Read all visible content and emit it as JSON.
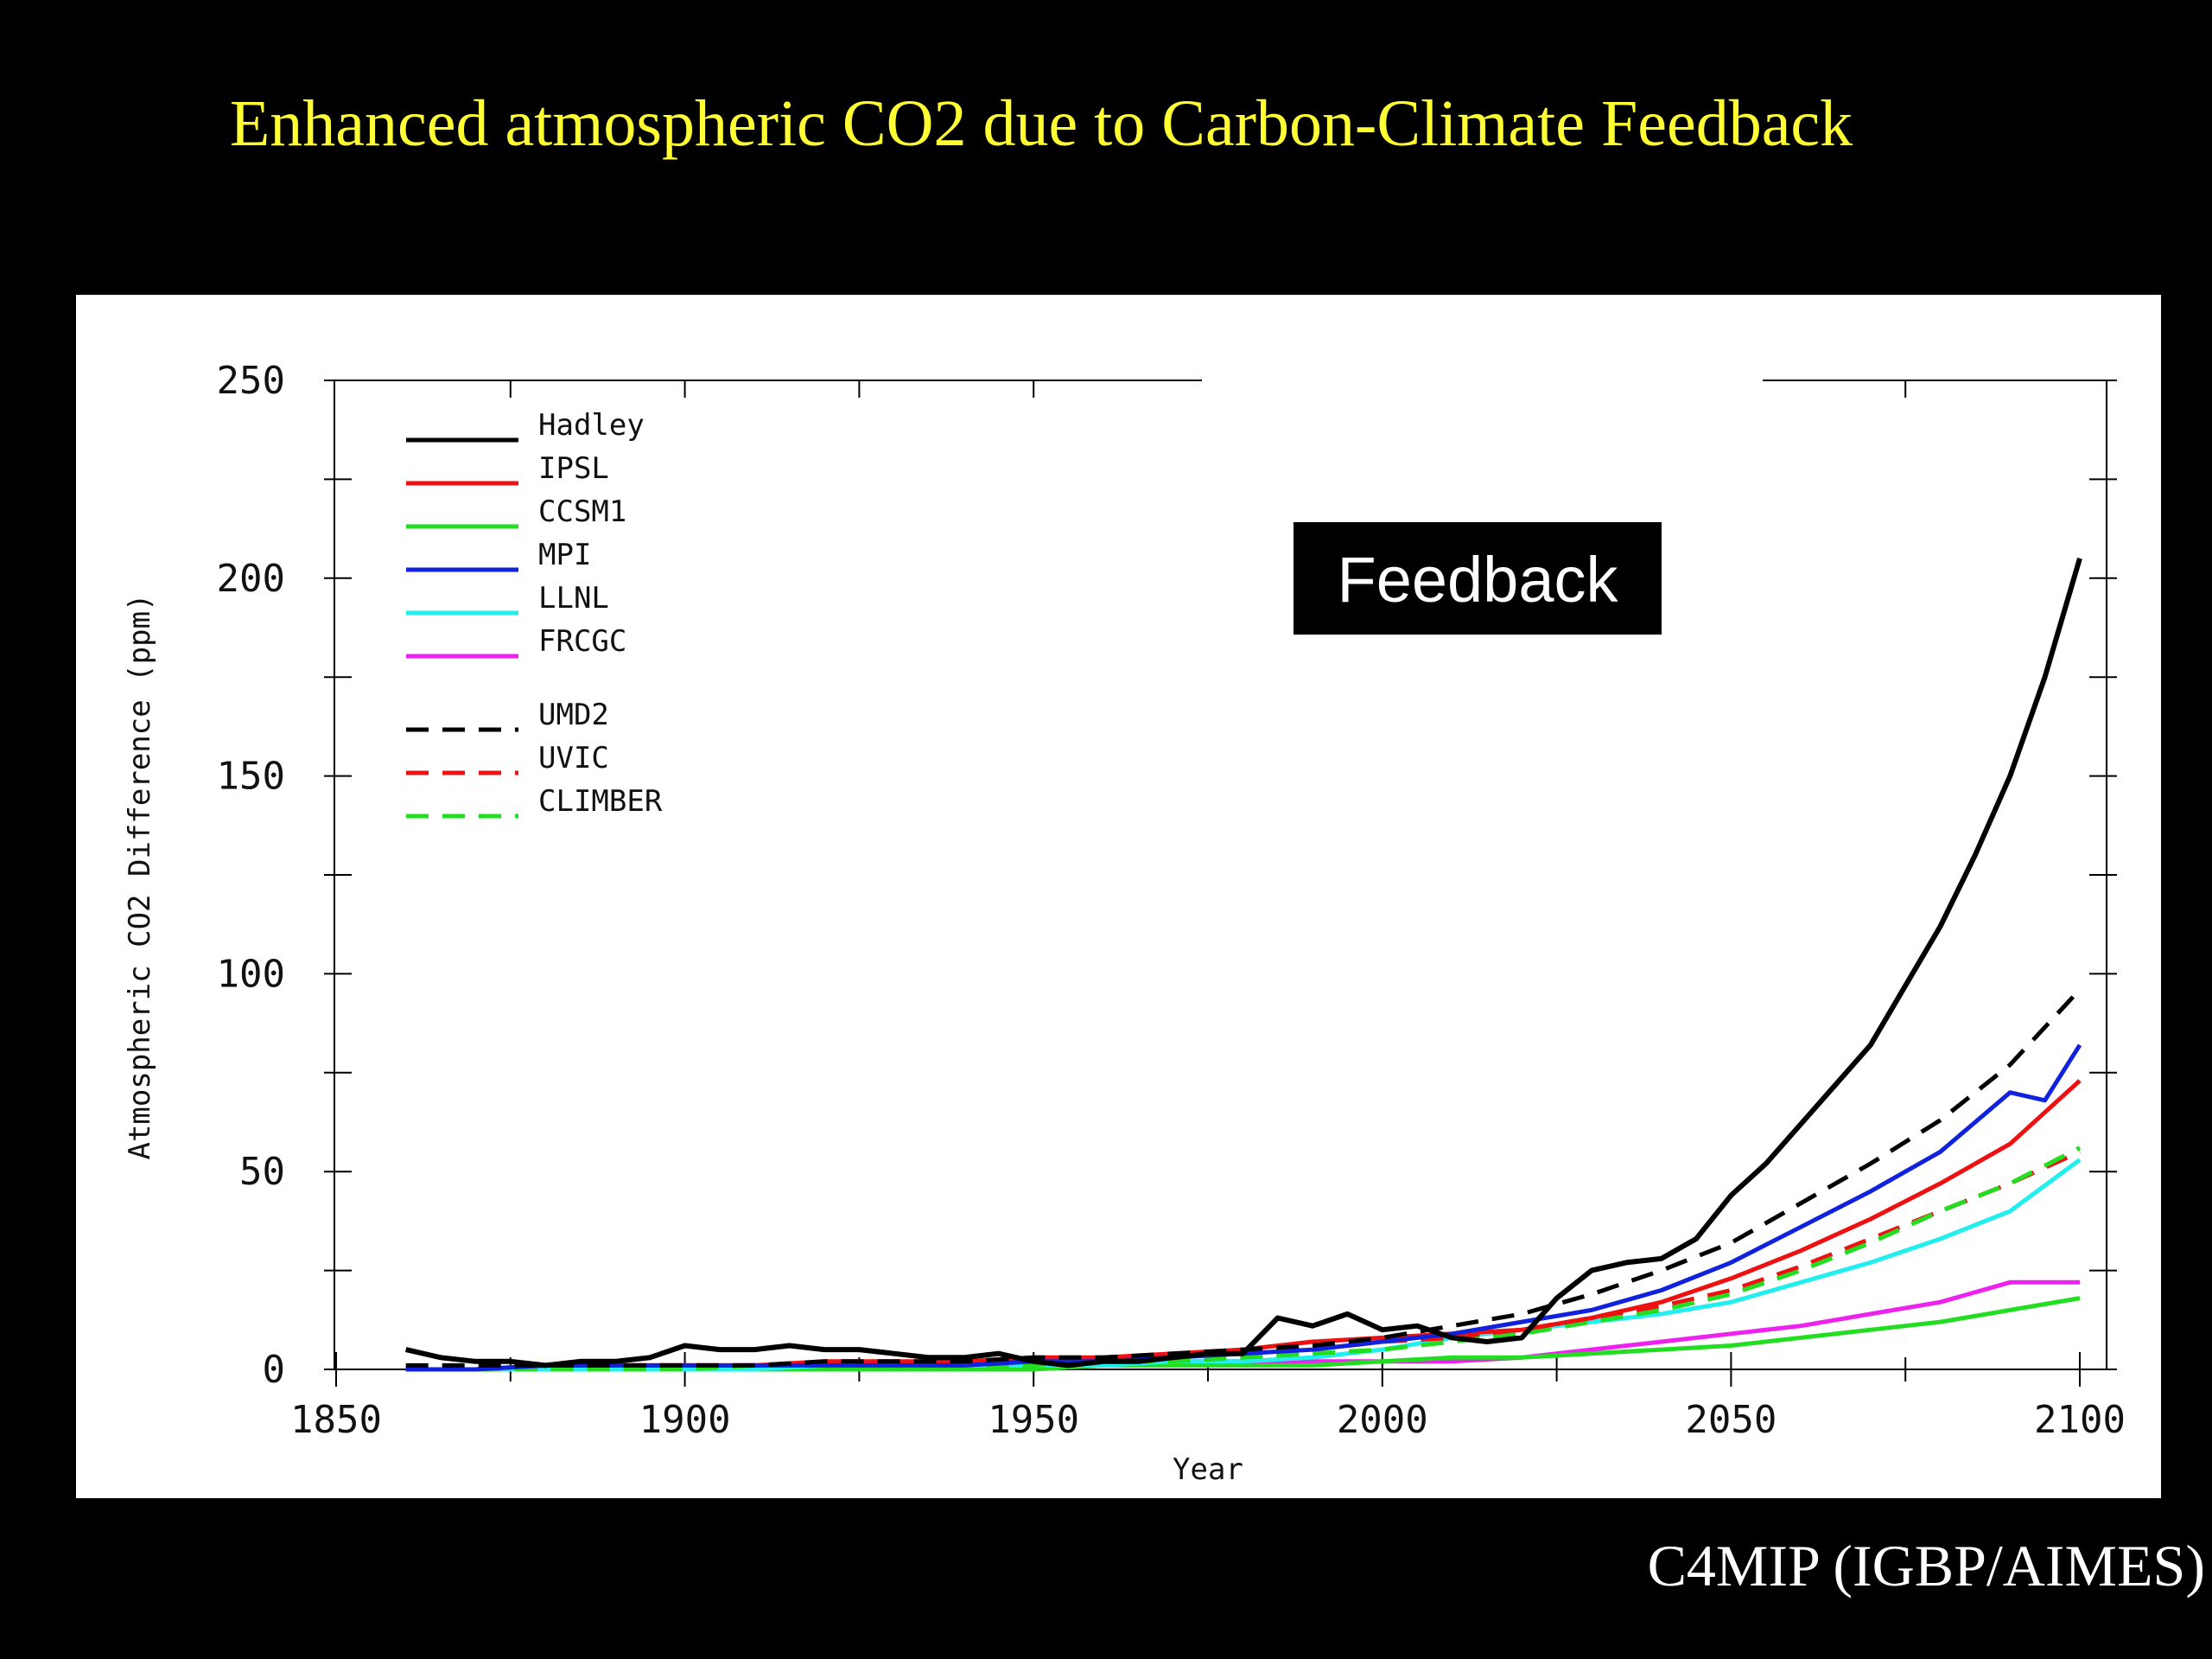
{
  "slide": {
    "title": "Enhanced atmospheric CO2 due to Carbon-Climate Feedback",
    "source": "C4MIP (IGBP/AIMES)"
  },
  "colors": {
    "background": "#000000",
    "title": "#ffff33",
    "panel": "#ffffff",
    "Hadley": "#000000",
    "IPSL": "#ee1111",
    "CCSM1": "#22dd22",
    "MPI": "#1122dd",
    "LLNL": "#22eeee",
    "FRCGC": "#ee22ee",
    "UMD2": "#000000",
    "UVIC": "#ee1111",
    "CLIMBER": "#22dd22"
  },
  "chart_data": {
    "type": "line",
    "title": "",
    "annotation": "Feedback",
    "xlabel": "Year",
    "ylabel": "Atmospheric CO2 Difference (ppm)",
    "xlim": [
      1850,
      2100
    ],
    "ylim": [
      0,
      250
    ],
    "xticks": [
      1850,
      1900,
      1950,
      2000,
      2050,
      2100
    ],
    "yticks": [
      0,
      50,
      100,
      150,
      200,
      250
    ],
    "legend": "top-left",
    "grid": false,
    "series": [
      {
        "name": "Hadley",
        "style": "solid",
        "x": [
          1860,
          1865,
          1870,
          1875,
          1880,
          1885,
          1890,
          1895,
          1900,
          1905,
          1910,
          1915,
          1920,
          1925,
          1930,
          1935,
          1940,
          1945,
          1950,
          1955,
          1960,
          1965,
          1970,
          1975,
          1980,
          1985,
          1990,
          1995,
          2000,
          2005,
          2010,
          2015,
          2020,
          2025,
          2030,
          2035,
          2040,
          2045,
          2050,
          2055,
          2060,
          2065,
          2070,
          2075,
          2080,
          2085,
          2090,
          2095,
          2100
        ],
        "y": [
          5,
          3,
          2,
          2,
          1,
          2,
          2,
          3,
          6,
          5,
          5,
          6,
          5,
          5,
          4,
          3,
          3,
          4,
          2,
          1,
          2,
          2,
          3,
          4,
          4,
          13,
          11,
          14,
          10,
          11,
          8,
          7,
          8,
          18,
          25,
          27,
          28,
          33,
          44,
          52,
          62,
          72,
          82,
          97,
          112,
          130,
          150,
          175,
          205
        ]
      },
      {
        "name": "IPSL",
        "style": "solid",
        "x": [
          1860,
          1870,
          1880,
          1890,
          1900,
          1910,
          1920,
          1930,
          1940,
          1950,
          1960,
          1970,
          1980,
          1990,
          2000,
          2010,
          2020,
          2030,
          2040,
          2050,
          2060,
          2070,
          2080,
          2090,
          2100
        ],
        "y": [
          0,
          0,
          1,
          1,
          1,
          1,
          2,
          2,
          2,
          3,
          3,
          4,
          5,
          7,
          8,
          9,
          10,
          13,
          17,
          23,
          30,
          38,
          47,
          57,
          73
        ]
      },
      {
        "name": "CCSM1",
        "style": "solid",
        "x": [
          1860,
          1870,
          1880,
          1890,
          1900,
          1910,
          1920,
          1930,
          1940,
          1950,
          1960,
          1970,
          1980,
          1990,
          2000,
          2010,
          2020,
          2030,
          2040,
          2050,
          2060,
          2070,
          2080,
          2090,
          2100
        ],
        "y": [
          0,
          0,
          0,
          0,
          0,
          0,
          0,
          0,
          0,
          0,
          1,
          1,
          1,
          1,
          2,
          3,
          3,
          4,
          5,
          6,
          8,
          10,
          12,
          15,
          18
        ]
      },
      {
        "name": "MPI",
        "style": "solid",
        "x": [
          1860,
          1870,
          1880,
          1890,
          1900,
          1910,
          1920,
          1930,
          1940,
          1950,
          1960,
          1970,
          1980,
          1990,
          2000,
          2010,
          2020,
          2030,
          2040,
          2050,
          2060,
          2070,
          2080,
          2090,
          2095,
          2100
        ],
        "y": [
          0,
          0,
          1,
          1,
          1,
          1,
          1,
          1,
          1,
          2,
          2,
          3,
          4,
          5,
          7,
          9,
          12,
          15,
          20,
          27,
          36,
          45,
          55,
          70,
          68,
          82
        ]
      },
      {
        "name": "LLNL",
        "style": "solid",
        "x": [
          1860,
          1870,
          1880,
          1890,
          1900,
          1910,
          1920,
          1930,
          1940,
          1950,
          1960,
          1970,
          1980,
          1990,
          2000,
          2010,
          2020,
          2030,
          2040,
          2050,
          2060,
          2070,
          2080,
          2090,
          2100
        ],
        "y": [
          0,
          0,
          0,
          0,
          0,
          0,
          1,
          1,
          1,
          1,
          1,
          2,
          2,
          3,
          5,
          8,
          10,
          12,
          14,
          17,
          22,
          27,
          33,
          40,
          53
        ]
      },
      {
        "name": "FRCGC",
        "style": "solid",
        "x": [
          1860,
          1870,
          1880,
          1890,
          1900,
          1910,
          1920,
          1930,
          1940,
          1950,
          1960,
          1970,
          1980,
          1990,
          2000,
          2010,
          2020,
          2030,
          2040,
          2050,
          2060,
          2070,
          2080,
          2090,
          2100
        ],
        "y": [
          0,
          0,
          0,
          0,
          0,
          0,
          0,
          1,
          1,
          1,
          1,
          2,
          2,
          2,
          2,
          2,
          3,
          5,
          7,
          9,
          11,
          14,
          17,
          22,
          22
        ]
      },
      {
        "name": "UMD2",
        "style": "dashed",
        "x": [
          1860,
          1870,
          1880,
          1890,
          1900,
          1910,
          1920,
          1930,
          1940,
          1950,
          1960,
          1970,
          1980,
          1990,
          2000,
          2010,
          2020,
          2030,
          2040,
          2050,
          2060,
          2070,
          2080,
          2090,
          2100
        ],
        "y": [
          1,
          1,
          1,
          1,
          1,
          1,
          2,
          2,
          2,
          3,
          3,
          4,
          5,
          6,
          8,
          11,
          14,
          19,
          25,
          32,
          42,
          52,
          63,
          77,
          96
        ]
      },
      {
        "name": "UVIC",
        "style": "dashed",
        "x": [
          1860,
          1870,
          1880,
          1890,
          1900,
          1910,
          1920,
          1930,
          1940,
          1950,
          1960,
          1970,
          1980,
          1990,
          2000,
          2010,
          2020,
          2030,
          2040,
          2050,
          2060,
          2070,
          2080,
          2090,
          2100
        ],
        "y": [
          0,
          0,
          0,
          1,
          1,
          1,
          1,
          1,
          2,
          2,
          3,
          3,
          4,
          5,
          7,
          8,
          10,
          13,
          16,
          20,
          26,
          33,
          40,
          47,
          55
        ]
      },
      {
        "name": "CLIMBER",
        "style": "dashed",
        "x": [
          1860,
          1870,
          1880,
          1890,
          1900,
          1910,
          1920,
          1930,
          1940,
          1950,
          1960,
          1970,
          1980,
          1990,
          2000,
          2010,
          2020,
          2030,
          2040,
          2050,
          2060,
          2070,
          2080,
          2090,
          2100
        ],
        "y": [
          0,
          0,
          0,
          0,
          0,
          1,
          1,
          1,
          1,
          1,
          2,
          2,
          3,
          4,
          5,
          7,
          9,
          12,
          15,
          19,
          25,
          32,
          40,
          47,
          56
        ]
      }
    ]
  }
}
